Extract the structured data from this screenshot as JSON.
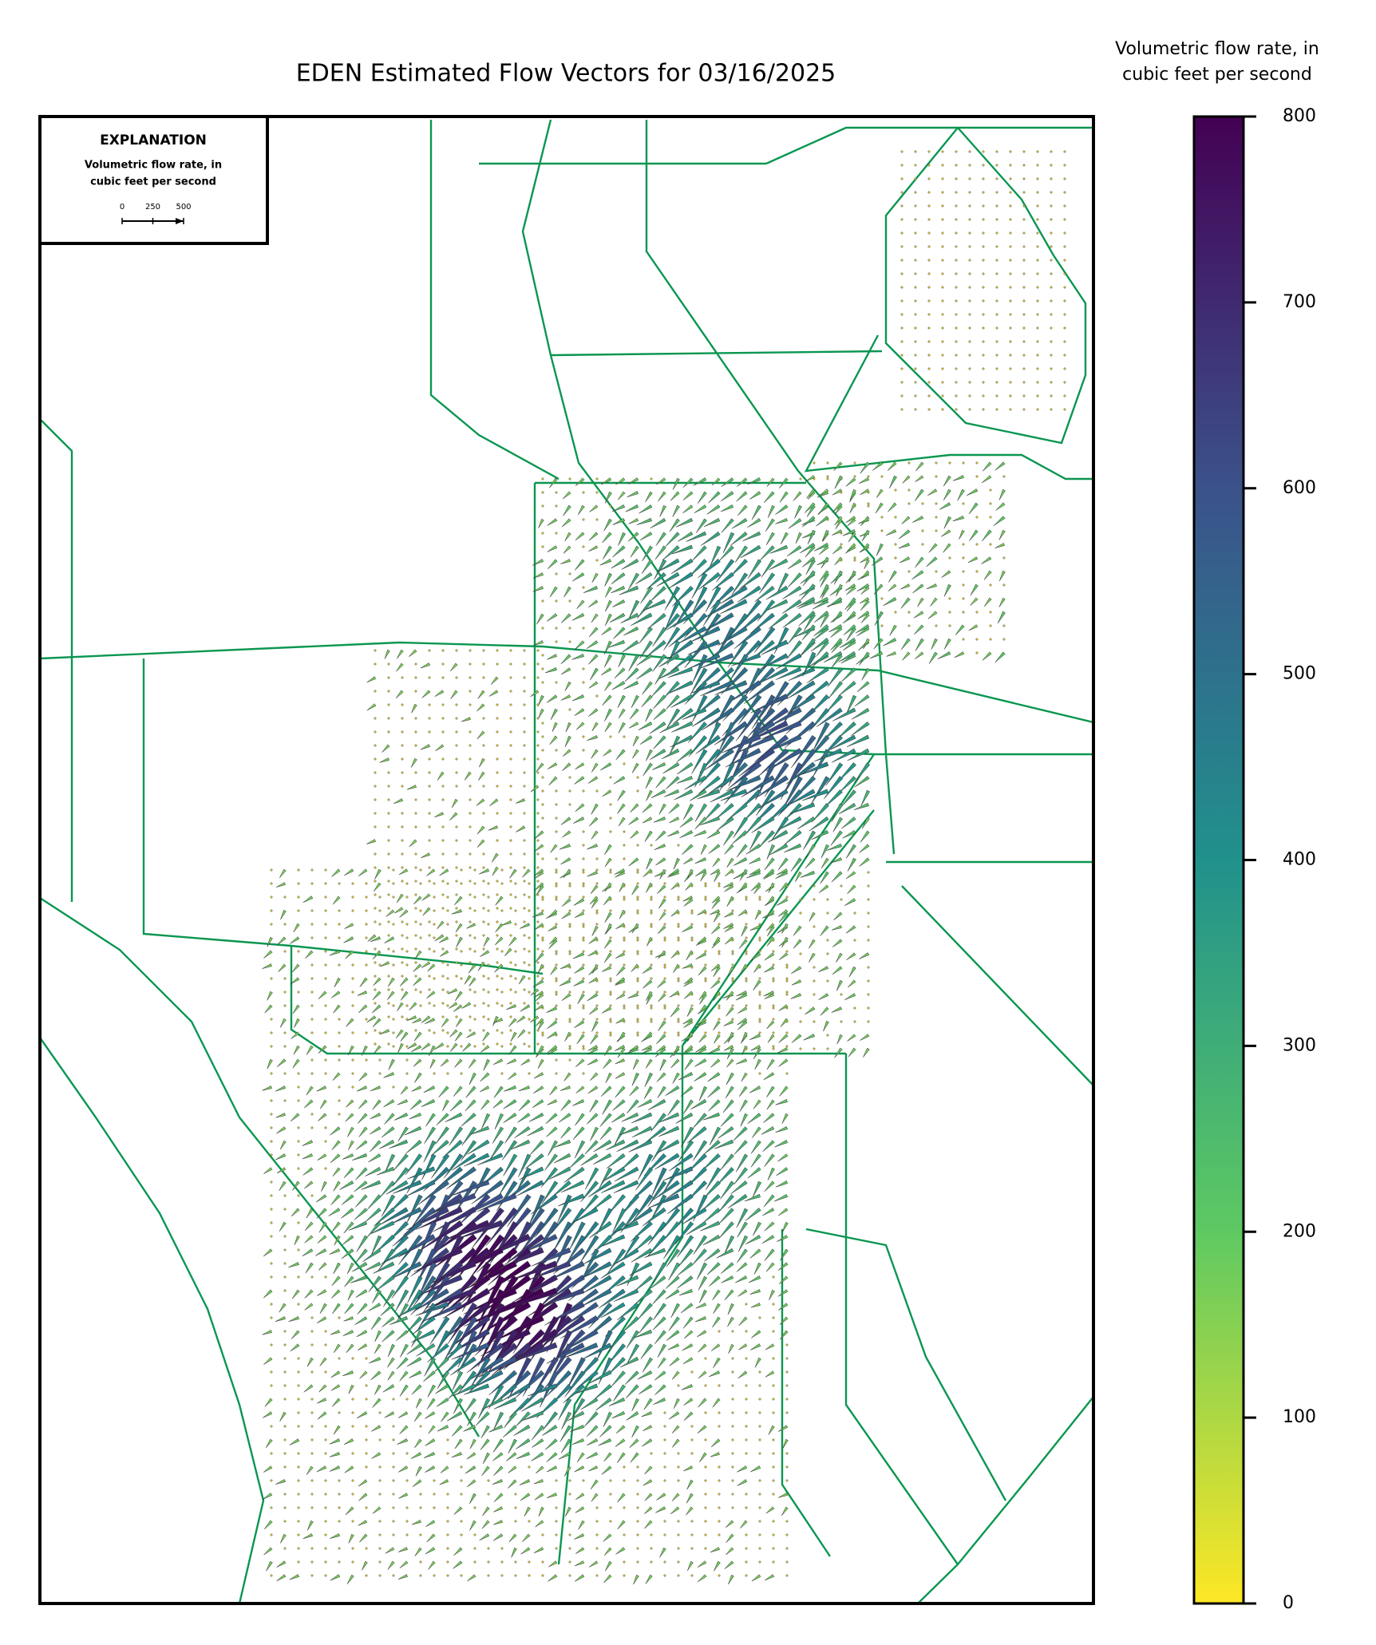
{
  "title": "EDEN Estimated Flow Vectors for 03/16/2025",
  "colorbar": {
    "label_lines": [
      "Volumetric flow rate, in",
      "cubic feet per second"
    ],
    "lim": [
      0,
      800
    ],
    "ticks": [
      0,
      100,
      200,
      300,
      400,
      500,
      600,
      700,
      800
    ]
  },
  "explanation": {
    "heading": "EXPLANATION",
    "lines": [
      "Volumetric flow rate, in",
      "cubic feet per second"
    ],
    "scale_ticks": [
      0,
      250,
      500
    ]
  }
}
